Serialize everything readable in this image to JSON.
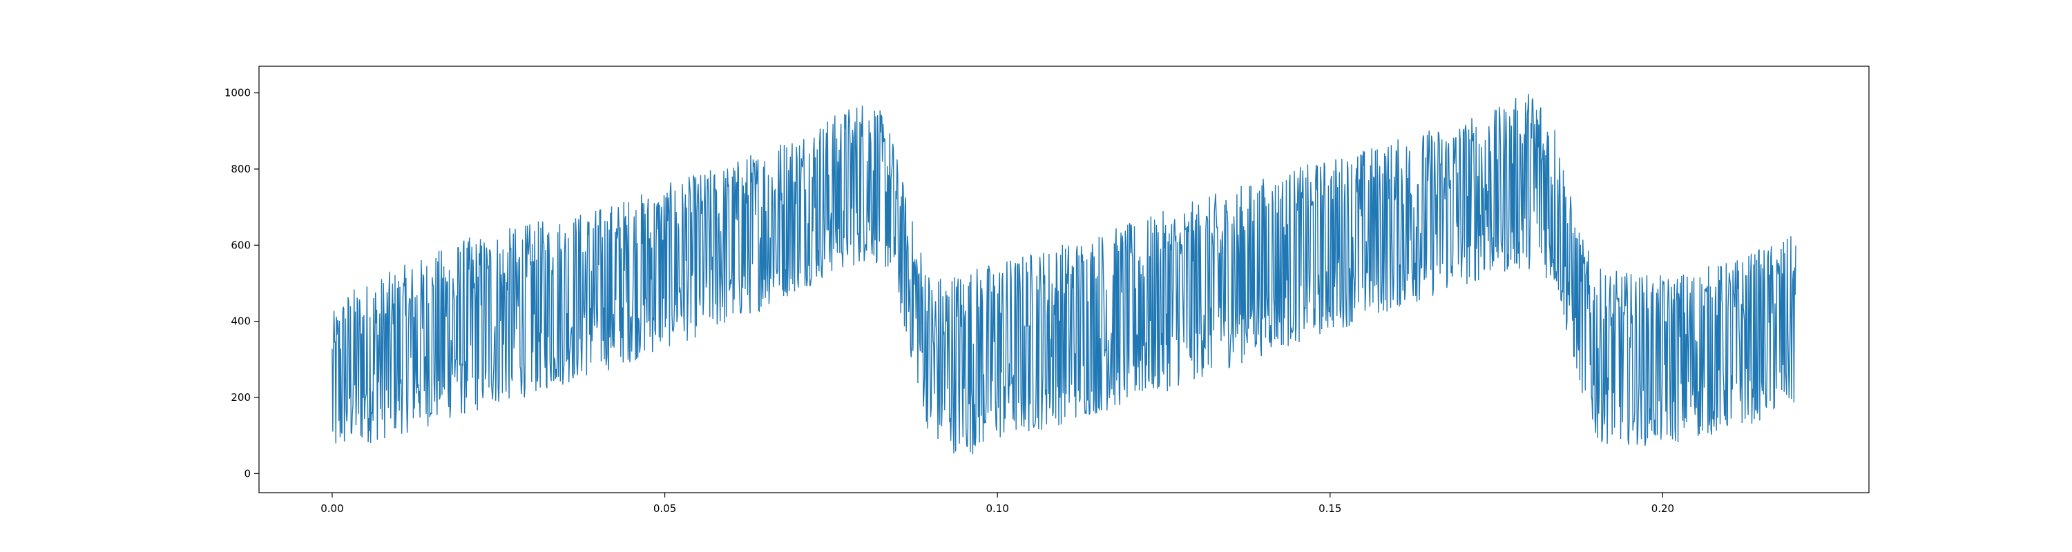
{
  "chart_data": {
    "type": "line",
    "title": "",
    "xlabel": "",
    "ylabel": "",
    "xlim": [
      -0.011,
      0.231
    ],
    "ylim": [
      -50,
      1070
    ],
    "xticks": [
      {
        "value": 0.0,
        "label": "0.00"
      },
      {
        "value": 0.05,
        "label": "0.05"
      },
      {
        "value": 0.1,
        "label": "0.10"
      },
      {
        "value": 0.15,
        "label": "0.15"
      },
      {
        "value": 0.2,
        "label": "0.20"
      }
    ],
    "yticks": [
      {
        "value": 0,
        "label": "0"
      },
      {
        "value": 200,
        "label": "200"
      },
      {
        "value": 400,
        "label": "400"
      },
      {
        "value": 600,
        "label": "600"
      },
      {
        "value": 800,
        "label": "800"
      },
      {
        "value": 1000,
        "label": "1000"
      }
    ],
    "grid": false,
    "legend": "none",
    "series": [
      {
        "color": "#1f77b4",
        "x_range": [
          0.0,
          0.22
        ],
        "envelope": {
          "x": [
            0.0,
            0.002,
            0.02,
            0.04,
            0.06,
            0.075,
            0.081,
            0.084,
            0.087,
            0.09,
            0.095,
            0.1,
            0.12,
            0.14,
            0.16,
            0.175,
            0.181,
            0.184,
            0.187,
            0.19,
            0.2,
            0.21,
            0.22
          ],
          "lower": [
            30,
            60,
            150,
            260,
            390,
            520,
            560,
            520,
            300,
            80,
            40,
            80,
            180,
            310,
            430,
            520,
            540,
            480,
            260,
            80,
            70,
            110,
            170
          ],
          "upper": [
            420,
            480,
            620,
            700,
            820,
            940,
            1000,
            900,
            680,
            520,
            540,
            560,
            660,
            780,
            880,
            960,
            1020,
            920,
            660,
            540,
            520,
            560,
            630
          ]
        },
        "samples": 2400
      }
    ]
  }
}
